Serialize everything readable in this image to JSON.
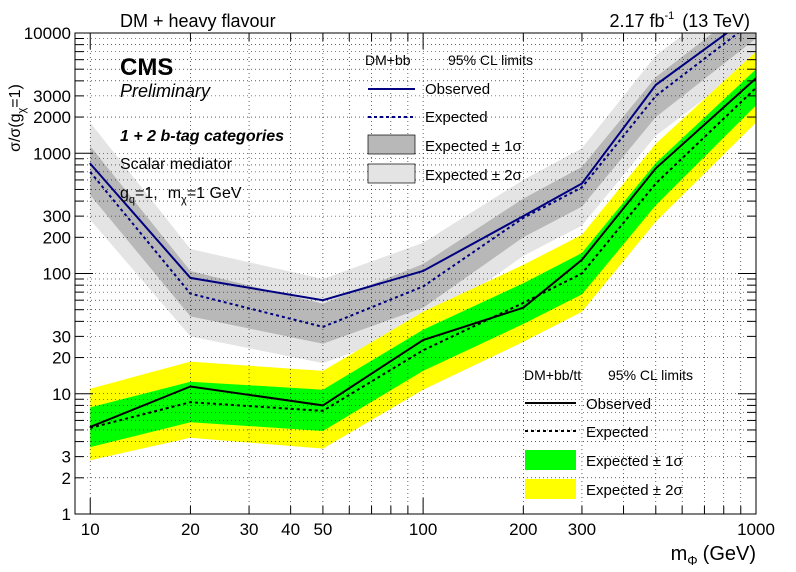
{
  "header": {
    "left_title": "DM + heavy flavour",
    "lumi_value": "2.17 fb",
    "lumi_sup": "-1",
    "energy": "(13 TeV)"
  },
  "annotations": {
    "cms": "CMS",
    "preliminary": "Preliminary",
    "categories": "1 + 2 b-tag categories",
    "mediator": "Scalar mediator",
    "couplings_g": "g",
    "couplings_g_sub": "q",
    "couplings_g_val": "=1,",
    "couplings_m": "m",
    "couplings_m_sub": "χ",
    "couplings_m_val": "=1 GeV"
  },
  "axes": {
    "ylabel_main": "σ/σ(g",
    "ylabel_sub": "χ",
    "ylabel_end": "=1)",
    "xlabel_main": "m",
    "xlabel_sub": "Φ",
    "xlabel_unit": "(GeV)"
  },
  "legend_bb": {
    "header_name": "DM+bb",
    "header_cl": "95% CL limits",
    "observed": "Observed",
    "expected": "Expected",
    "band1": "Expected ± 1σ",
    "band2": "Expected ± 2σ"
  },
  "legend_combo": {
    "header_name": "DM+bb/tt",
    "header_cl": "95% CL limits",
    "observed": "Observed",
    "expected": "Expected",
    "band1": "Expected ± 1σ",
    "band2": "Expected ± 2σ"
  },
  "colors": {
    "bb_line": "#000080",
    "bb_band1": "#b8b8b8",
    "bb_band2": "#e4e4e4",
    "combo_line": "#000000",
    "combo_band1": "#00ff00",
    "combo_band2": "#ffff00"
  },
  "chart_data": {
    "type": "line",
    "x_scale": "log",
    "y_scale": "log",
    "xlim": [
      9,
      1000
    ],
    "ylim": [
      1,
      10000
    ],
    "x_ticks": [
      10,
      20,
      30,
      40,
      50,
      100,
      200,
      300,
      1000
    ],
    "y_ticks": [
      1,
      2,
      3,
      10,
      20,
      30,
      100,
      200,
      300,
      1000,
      2000,
      3000,
      10000
    ],
    "grid": true,
    "x": [
      10,
      20,
      50,
      100,
      200,
      300,
      500,
      1000
    ],
    "series": [
      {
        "name": "DM+bb",
        "observed": [
          820,
          92,
          60,
          105,
          300,
          560,
          3700,
          15000
        ],
        "expected": [
          700,
          68,
          36,
          78,
          290,
          520,
          3000,
          13000
        ],
        "band1_low": [
          450,
          44,
          26,
          52,
          200,
          360,
          2000,
          9000
        ],
        "band1_high": [
          1150,
          105,
          56,
          120,
          420,
          770,
          4300,
          19000
        ],
        "band2_low": [
          280,
          30,
          18,
          36,
          140,
          250,
          1400,
          6000
        ],
        "band2_high": [
          1800,
          160,
          90,
          180,
          600,
          1100,
          6500,
          28000
        ]
      },
      {
        "name": "DM+bb/tt",
        "observed": [
          5.3,
          11.5,
          8.0,
          28,
          52,
          130,
          750,
          4200
        ],
        "expected": [
          5.2,
          8.5,
          7.2,
          23,
          57,
          100,
          560,
          3500
        ],
        "band1_low": [
          3.6,
          5.8,
          4.9,
          15.5,
          38,
          67,
          370,
          2500
        ],
        "band1_high": [
          7.7,
          12.6,
          10.8,
          34,
          83,
          148,
          830,
          5000
        ],
        "band2_low": [
          2.8,
          4.3,
          3.5,
          10.8,
          27,
          48,
          270,
          1800
        ],
        "band2_high": [
          11,
          18.5,
          15.5,
          48,
          118,
          210,
          1200,
          7000
        ]
      }
    ]
  }
}
